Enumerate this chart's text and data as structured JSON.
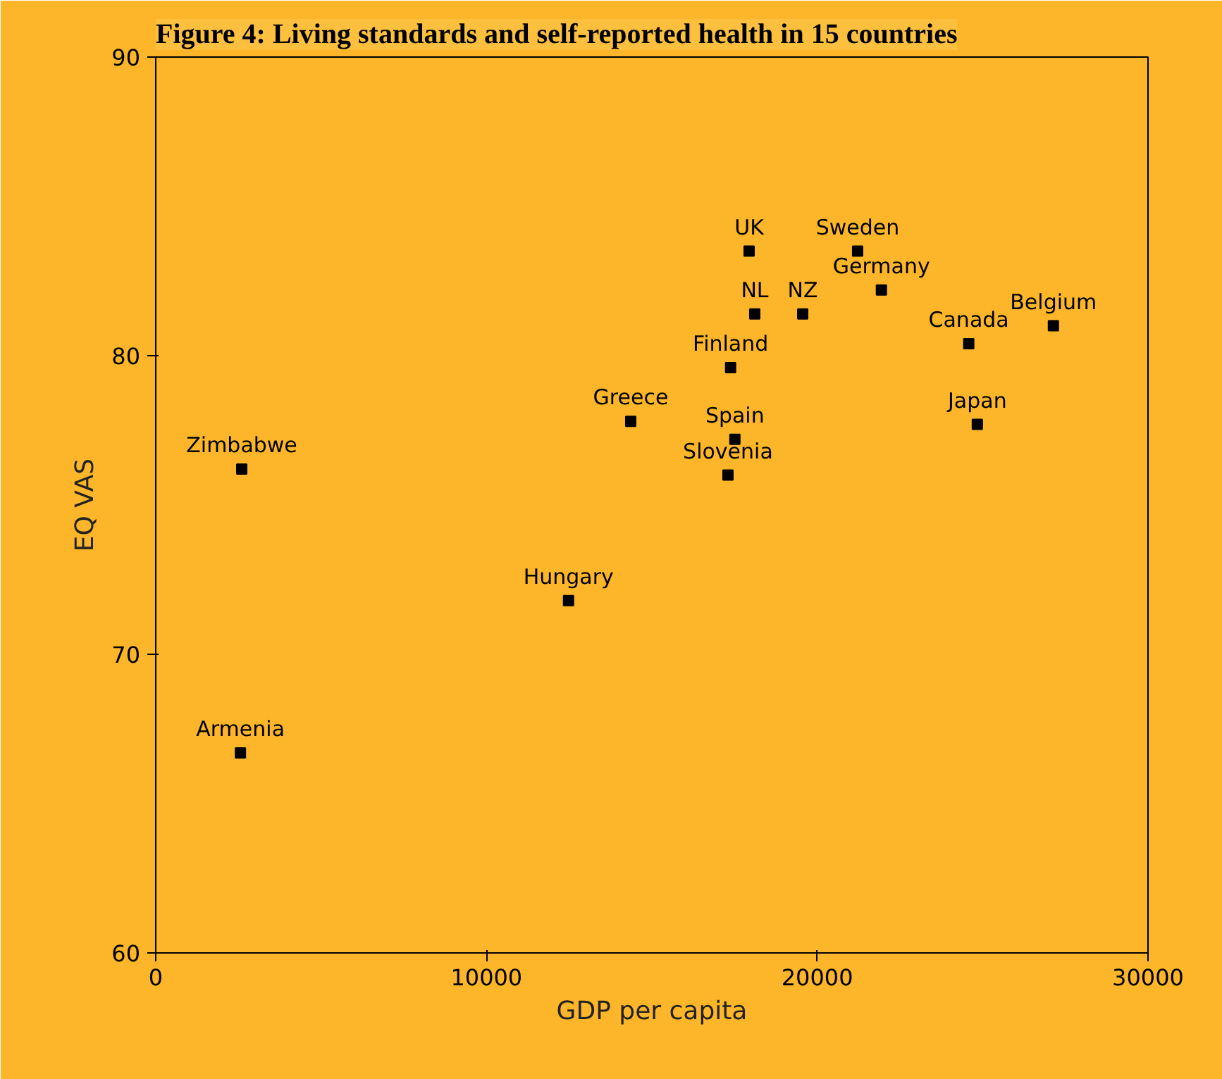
{
  "chart_data": {
    "type": "scatter",
    "title": "Figure 4: Living standards and self-reported health in 15 countries",
    "xlabel": "GDP per capita",
    "ylabel": "EQ VAS",
    "x": [
      2600,
      2560,
      12480,
      14360,
      17510,
      17300,
      17380,
      17940,
      18110,
      19560,
      21220,
      21940,
      24580,
      27140,
      24840
    ],
    "series": [
      {
        "color": "#000000",
        "values": [
          76.2,
          66.7,
          71.8,
          77.8,
          77.2,
          76.0,
          79.6,
          83.5,
          81.4,
          81.4,
          83.5,
          82.2,
          80.4,
          81.0,
          77.7
        ]
      }
    ],
    "annotations": [
      {
        "text": "Zimbabwe",
        "x": 2600,
        "y": 76.2
      },
      {
        "text": "Armenia",
        "x": 2560,
        "y": 66.7
      },
      {
        "text": "Hungary",
        "x": 12480,
        "y": 71.8
      },
      {
        "text": "Greece",
        "x": 14360,
        "y": 77.8
      },
      {
        "text": "Spain",
        "x": 17510,
        "y": 77.2
      },
      {
        "text": "Slovenia",
        "x": 17300,
        "y": 76.0
      },
      {
        "text": "Finland",
        "x": 17380,
        "y": 79.6
      },
      {
        "text": "UK",
        "x": 17940,
        "y": 83.5
      },
      {
        "text": "NL",
        "x": 18110,
        "y": 81.4
      },
      {
        "text": "NZ",
        "x": 19560,
        "y": 81.4
      },
      {
        "text": "Sweden",
        "x": 21220,
        "y": 83.5
      },
      {
        "text": "Germany",
        "x": 21940,
        "y": 82.2
      },
      {
        "text": "Canada",
        "x": 24580,
        "y": 80.4
      },
      {
        "text": "Belgium",
        "x": 27140,
        "y": 81.0
      },
      {
        "text": "Japan",
        "x": 24840,
        "y": 77.7
      }
    ],
    "xlim": [
      0,
      30000
    ],
    "ylim": [
      60,
      90
    ],
    "xticks": [
      0,
      10000,
      20000,
      30000
    ],
    "yticks": [
      60,
      70,
      80,
      90
    ],
    "marker": "square"
  }
}
